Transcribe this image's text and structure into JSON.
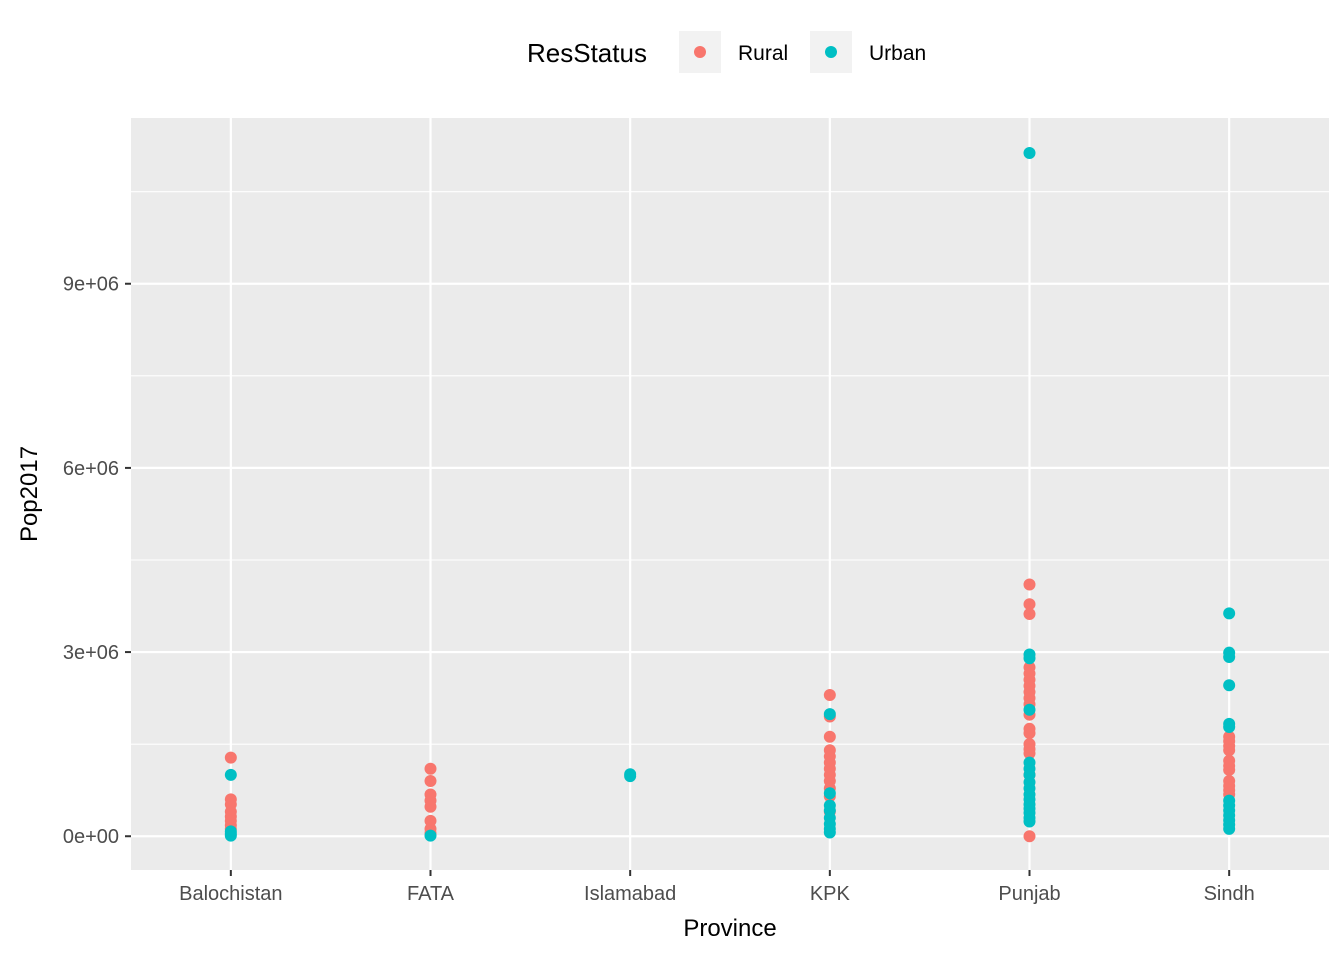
{
  "chart_data": {
    "type": "scatter",
    "xlabel": "Province",
    "ylabel": "Pop2017",
    "categories": [
      "Balochistan",
      "FATA",
      "Islamabad",
      "KPK",
      "Punjab",
      "Sindh"
    ],
    "y_ticks": [
      {
        "value": 0,
        "label": "0e+00"
      },
      {
        "value": 3000000,
        "label": "3e+06"
      },
      {
        "value": 6000000,
        "label": "6e+06"
      },
      {
        "value": 9000000,
        "label": "9e+06"
      }
    ],
    "ylim": [
      -550000,
      11700000
    ],
    "grid": true,
    "legend": {
      "title": "ResStatus",
      "position": "top",
      "entries": [
        {
          "label": "Rural",
          "color": "#F8766D"
        },
        {
          "label": "Urban",
          "color": "#00BFC4"
        }
      ]
    },
    "series": [
      {
        "name": "Rural",
        "color": "#F8766D",
        "points": [
          {
            "x": "Balochistan",
            "y": 1280000
          },
          {
            "x": "Balochistan",
            "y": 600000
          },
          {
            "x": "Balochistan",
            "y": 520000
          },
          {
            "x": "Balochistan",
            "y": 400000
          },
          {
            "x": "Balochistan",
            "y": 320000
          },
          {
            "x": "Balochistan",
            "y": 250000
          },
          {
            "x": "Balochistan",
            "y": 180000
          },
          {
            "x": "Balochistan",
            "y": 120000
          },
          {
            "x": "FATA",
            "y": 1100000
          },
          {
            "x": "FATA",
            "y": 900000
          },
          {
            "x": "FATA",
            "y": 680000
          },
          {
            "x": "FATA",
            "y": 580000
          },
          {
            "x": "FATA",
            "y": 480000
          },
          {
            "x": "FATA",
            "y": 250000
          },
          {
            "x": "FATA",
            "y": 120000
          },
          {
            "x": "FATA",
            "y": 50000
          },
          {
            "x": "KPK",
            "y": 2300000
          },
          {
            "x": "KPK",
            "y": 1950000
          },
          {
            "x": "KPK",
            "y": 1620000
          },
          {
            "x": "KPK",
            "y": 1400000
          },
          {
            "x": "KPK",
            "y": 1300000
          },
          {
            "x": "KPK",
            "y": 1200000
          },
          {
            "x": "KPK",
            "y": 1100000
          },
          {
            "x": "KPK",
            "y": 1000000
          },
          {
            "x": "KPK",
            "y": 900000
          },
          {
            "x": "KPK",
            "y": 780000
          },
          {
            "x": "KPK",
            "y": 650000
          },
          {
            "x": "KPK",
            "y": 400000
          },
          {
            "x": "Punjab",
            "y": 4100000
          },
          {
            "x": "Punjab",
            "y": 3780000
          },
          {
            "x": "Punjab",
            "y": 3620000
          },
          {
            "x": "Punjab",
            "y": 2750000
          },
          {
            "x": "Punjab",
            "y": 2650000
          },
          {
            "x": "Punjab",
            "y": 2550000
          },
          {
            "x": "Punjab",
            "y": 2450000
          },
          {
            "x": "Punjab",
            "y": 2350000
          },
          {
            "x": "Punjab",
            "y": 2250000
          },
          {
            "x": "Punjab",
            "y": 2150000
          },
          {
            "x": "Punjab",
            "y": 1980000
          },
          {
            "x": "Punjab",
            "y": 1750000
          },
          {
            "x": "Punjab",
            "y": 1680000
          },
          {
            "x": "Punjab",
            "y": 1500000
          },
          {
            "x": "Punjab",
            "y": 1420000
          },
          {
            "x": "Punjab",
            "y": 1350000
          },
          {
            "x": "Punjab",
            "y": 1000000
          },
          {
            "x": "Punjab",
            "y": 0
          },
          {
            "x": "Sindh",
            "y": 1620000
          },
          {
            "x": "Sindh",
            "y": 1550000
          },
          {
            "x": "Sindh",
            "y": 1470000
          },
          {
            "x": "Sindh",
            "y": 1400000
          },
          {
            "x": "Sindh",
            "y": 1230000
          },
          {
            "x": "Sindh",
            "y": 1150000
          },
          {
            "x": "Sindh",
            "y": 1080000
          },
          {
            "x": "Sindh",
            "y": 900000
          },
          {
            "x": "Sindh",
            "y": 820000
          },
          {
            "x": "Sindh",
            "y": 750000
          },
          {
            "x": "Sindh",
            "y": 680000
          }
        ]
      },
      {
        "name": "Urban",
        "color": "#00BFC4",
        "points": [
          {
            "x": "Balochistan",
            "y": 1000000
          },
          {
            "x": "Balochistan",
            "y": 80000
          },
          {
            "x": "Balochistan",
            "y": 40000
          },
          {
            "x": "Balochistan",
            "y": 10000
          },
          {
            "x": "FATA",
            "y": 10000
          },
          {
            "x": "Islamabad",
            "y": 1010000
          },
          {
            "x": "Islamabad",
            "y": 980000
          },
          {
            "x": "KPK",
            "y": 1990000
          },
          {
            "x": "KPK",
            "y": 700000
          },
          {
            "x": "KPK",
            "y": 500000
          },
          {
            "x": "KPK",
            "y": 420000
          },
          {
            "x": "KPK",
            "y": 300000
          },
          {
            "x": "KPK",
            "y": 200000
          },
          {
            "x": "KPK",
            "y": 120000
          },
          {
            "x": "KPK",
            "y": 60000
          },
          {
            "x": "Punjab",
            "y": 11130000
          },
          {
            "x": "Punjab",
            "y": 2960000
          },
          {
            "x": "Punjab",
            "y": 2900000
          },
          {
            "x": "Punjab",
            "y": 2060000
          },
          {
            "x": "Punjab",
            "y": 1200000
          },
          {
            "x": "Punjab",
            "y": 1100000
          },
          {
            "x": "Punjab",
            "y": 1000000
          },
          {
            "x": "Punjab",
            "y": 880000
          },
          {
            "x": "Punjab",
            "y": 780000
          },
          {
            "x": "Punjab",
            "y": 680000
          },
          {
            "x": "Punjab",
            "y": 600000
          },
          {
            "x": "Punjab",
            "y": 520000
          },
          {
            "x": "Punjab",
            "y": 450000
          },
          {
            "x": "Punjab",
            "y": 380000
          },
          {
            "x": "Punjab",
            "y": 300000
          },
          {
            "x": "Punjab",
            "y": 240000
          },
          {
            "x": "Sindh",
            "y": 3630000
          },
          {
            "x": "Sindh",
            "y": 2990000
          },
          {
            "x": "Sindh",
            "y": 2920000
          },
          {
            "x": "Sindh",
            "y": 2460000
          },
          {
            "x": "Sindh",
            "y": 1830000
          },
          {
            "x": "Sindh",
            "y": 1780000
          },
          {
            "x": "Sindh",
            "y": 580000
          },
          {
            "x": "Sindh",
            "y": 500000
          },
          {
            "x": "Sindh",
            "y": 420000
          },
          {
            "x": "Sindh",
            "y": 340000
          },
          {
            "x": "Sindh",
            "y": 260000
          },
          {
            "x": "Sindh",
            "y": 190000
          },
          {
            "x": "Sindh",
            "y": 120000
          }
        ]
      }
    ]
  }
}
